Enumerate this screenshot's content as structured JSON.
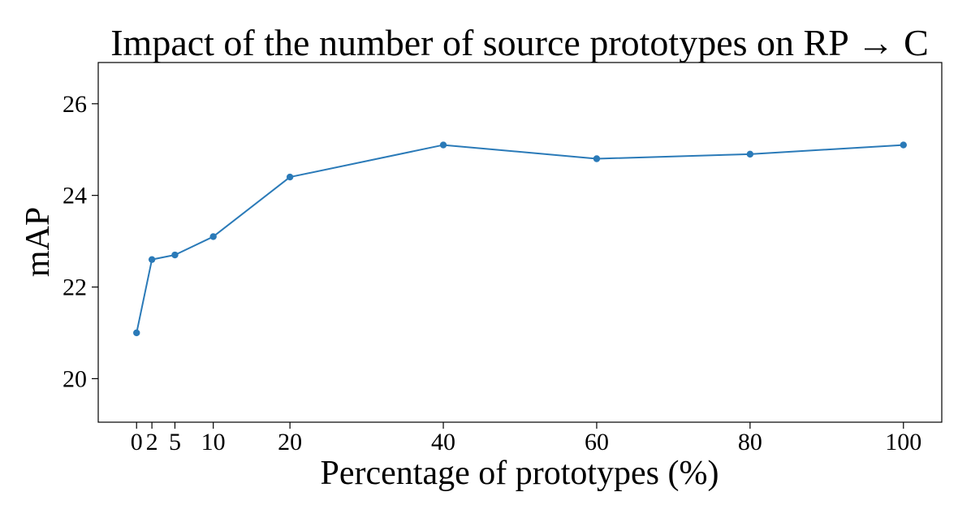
{
  "chart_data": {
    "type": "line",
    "title": "Impact of the number of source prototypes on RP → C",
    "xlabel": "Percentage of prototypes (%)",
    "ylabel": "mAP",
    "x": [
      0,
      2,
      5,
      10,
      20,
      40,
      60,
      80,
      100
    ],
    "x_ticks": [
      0,
      2,
      5,
      10,
      20,
      40,
      60,
      80,
      100
    ],
    "x_tick_labels": [
      "0",
      "2",
      "5",
      "10",
      "20",
      "40",
      "60",
      "80",
      "100"
    ],
    "y_ticks": [
      20,
      22,
      24,
      26
    ],
    "y_tick_labels": [
      "20",
      "22",
      "24",
      "26"
    ],
    "xlim": [
      -5,
      105
    ],
    "ylim": [
      19.05,
      26.9
    ],
    "series": [
      {
        "values": [
          21.0,
          22.6,
          22.7,
          23.1,
          24.4,
          25.1,
          24.8,
          24.9,
          25.1
        ],
        "color": "#2a7ab8",
        "marker": "circle"
      }
    ],
    "grid": false,
    "legend": "none"
  }
}
